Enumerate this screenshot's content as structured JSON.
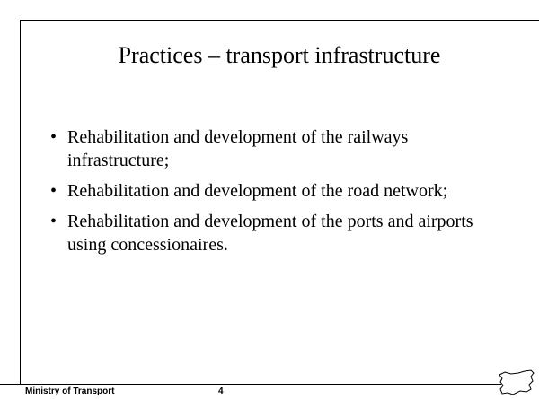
{
  "title": "Practices – transport infrastructure",
  "bullets": [
    "Rehabilitation and development of the railways infrastructure;",
    "Rehabilitation and development of the road network;",
    "Rehabilitation and development of the ports and airports using concessionaires."
  ],
  "footer": {
    "ministry": "Ministry of Transport",
    "page_number": 4
  }
}
